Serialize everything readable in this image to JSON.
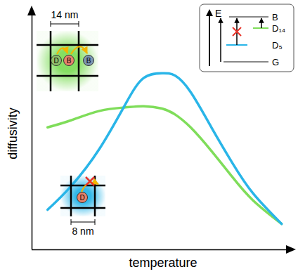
{
  "chart_data": {
    "type": "line",
    "x_label": "temperature",
    "y_label": "diffusivity",
    "xlim": [
      0,
      10
    ],
    "ylim": [
      0,
      10
    ],
    "xticks": [],
    "yticks": [],
    "tick_labels": false,
    "grid": false,
    "x": [
      0.6,
      1.5,
      2.6,
      3.6,
      4.3,
      5.0,
      5.5,
      6.1,
      6.9,
      7.7,
      8.5,
      9.6
    ],
    "series": [
      {
        "color": "#7fdd5a",
        "values": [
          5.2,
          5.5,
          5.9,
          6.05,
          6.1,
          6.0,
          5.75,
          5.2,
          4.2,
          3.1,
          2.1,
          1.1
        ]
      },
      {
        "color": "#29b5e8",
        "values": [
          1.7,
          2.7,
          4.3,
          6.2,
          7.3,
          7.5,
          7.4,
          6.7,
          5.2,
          3.7,
          2.4,
          1.1
        ]
      }
    ],
    "insets": {
      "large_pore": {
        "size": "14 nm",
        "particles": [
          "D",
          "B",
          "B"
        ]
      },
      "small_pore": {
        "size": "8 nm",
        "particles": [
          "D"
        ]
      },
      "energy_levels": {
        "axis": "E",
        "levels": [
          "B",
          "D₁₄",
          "D₅",
          "G"
        ]
      }
    }
  }
}
